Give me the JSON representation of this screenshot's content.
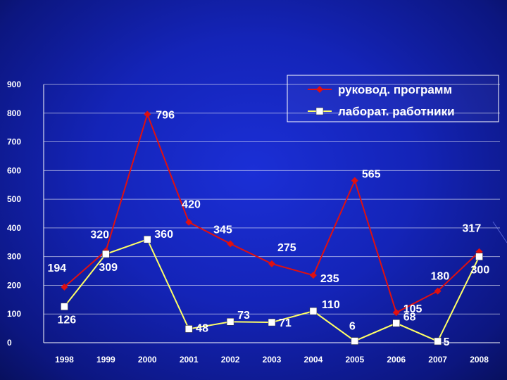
{
  "chart_data": {
    "type": "line",
    "categories": [
      "1998",
      "1999",
      "2000",
      "2001",
      "2002",
      "2003",
      "2004",
      "2005",
      "2006",
      "2007",
      "2008"
    ],
    "ylim": [
      0,
      900
    ],
    "yticks": [
      0,
      100,
      200,
      300,
      400,
      500,
      600,
      700,
      800,
      900
    ],
    "grid": true,
    "legend_position": "top-right",
    "series": [
      {
        "name": "руковод. программ",
        "color": "#e01010",
        "marker": "diamond",
        "values": [
          194,
          320,
          796,
          420,
          345,
          275,
          235,
          565,
          105,
          180,
          317
        ]
      },
      {
        "name": "лаборат. работники",
        "color": "#ffff66",
        "marker": "square",
        "values": [
          126,
          309,
          360,
          48,
          73,
          71,
          110,
          6,
          68,
          5,
          300
        ]
      }
    ]
  }
}
